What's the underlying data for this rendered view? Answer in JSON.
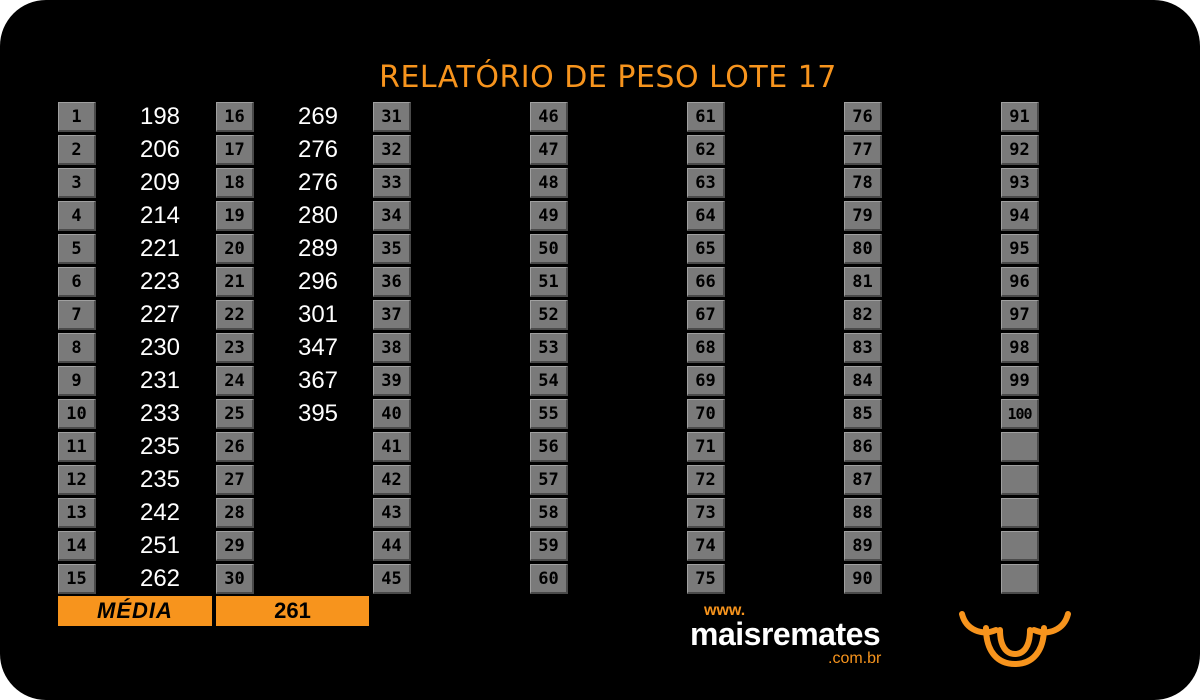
{
  "report": {
    "title": "RELATÓRIO DE PESO LOTE 17",
    "columns": [
      {
        "rows": [
          {
            "n": "1",
            "v": "198"
          },
          {
            "n": "2",
            "v": "206"
          },
          {
            "n": "3",
            "v": "209"
          },
          {
            "n": "4",
            "v": "214"
          },
          {
            "n": "5",
            "v": "221"
          },
          {
            "n": "6",
            "v": "223"
          },
          {
            "n": "7",
            "v": "227"
          },
          {
            "n": "8",
            "v": "230"
          },
          {
            "n": "9",
            "v": "231"
          },
          {
            "n": "10",
            "v": "233"
          },
          {
            "n": "11",
            "v": "235"
          },
          {
            "n": "12",
            "v": "235"
          },
          {
            "n": "13",
            "v": "242"
          },
          {
            "n": "14",
            "v": "251"
          },
          {
            "n": "15",
            "v": "262"
          }
        ]
      },
      {
        "rows": [
          {
            "n": "16",
            "v": "269"
          },
          {
            "n": "17",
            "v": "276"
          },
          {
            "n": "18",
            "v": "276"
          },
          {
            "n": "19",
            "v": "280"
          },
          {
            "n": "20",
            "v": "289"
          },
          {
            "n": "21",
            "v": "296"
          },
          {
            "n": "22",
            "v": "301"
          },
          {
            "n": "23",
            "v": "347"
          },
          {
            "n": "24",
            "v": "367"
          },
          {
            "n": "25",
            "v": "395"
          },
          {
            "n": "26",
            "v": ""
          },
          {
            "n": "27",
            "v": ""
          },
          {
            "n": "28",
            "v": ""
          },
          {
            "n": "29",
            "v": ""
          },
          {
            "n": "30",
            "v": ""
          }
        ]
      },
      {
        "rows": [
          {
            "n": "31",
            "v": ""
          },
          {
            "n": "32",
            "v": ""
          },
          {
            "n": "33",
            "v": ""
          },
          {
            "n": "34",
            "v": ""
          },
          {
            "n": "35",
            "v": ""
          },
          {
            "n": "36",
            "v": ""
          },
          {
            "n": "37",
            "v": ""
          },
          {
            "n": "38",
            "v": ""
          },
          {
            "n": "39",
            "v": ""
          },
          {
            "n": "40",
            "v": ""
          },
          {
            "n": "41",
            "v": ""
          },
          {
            "n": "42",
            "v": ""
          },
          {
            "n": "43",
            "v": ""
          },
          {
            "n": "44",
            "v": ""
          },
          {
            "n": "45",
            "v": ""
          }
        ]
      },
      {
        "rows": [
          {
            "n": "46",
            "v": ""
          },
          {
            "n": "47",
            "v": ""
          },
          {
            "n": "48",
            "v": ""
          },
          {
            "n": "49",
            "v": ""
          },
          {
            "n": "50",
            "v": ""
          },
          {
            "n": "51",
            "v": ""
          },
          {
            "n": "52",
            "v": ""
          },
          {
            "n": "53",
            "v": ""
          },
          {
            "n": "54",
            "v": ""
          },
          {
            "n": "55",
            "v": ""
          },
          {
            "n": "56",
            "v": ""
          },
          {
            "n": "57",
            "v": ""
          },
          {
            "n": "58",
            "v": ""
          },
          {
            "n": "59",
            "v": ""
          },
          {
            "n": "60",
            "v": ""
          }
        ]
      },
      {
        "rows": [
          {
            "n": "61",
            "v": ""
          },
          {
            "n": "62",
            "v": ""
          },
          {
            "n": "63",
            "v": ""
          },
          {
            "n": "64",
            "v": ""
          },
          {
            "n": "65",
            "v": ""
          },
          {
            "n": "66",
            "v": ""
          },
          {
            "n": "67",
            "v": ""
          },
          {
            "n": "68",
            "v": ""
          },
          {
            "n": "69",
            "v": ""
          },
          {
            "n": "70",
            "v": ""
          },
          {
            "n": "71",
            "v": ""
          },
          {
            "n": "72",
            "v": ""
          },
          {
            "n": "73",
            "v": ""
          },
          {
            "n": "74",
            "v": ""
          },
          {
            "n": "75",
            "v": ""
          }
        ]
      },
      {
        "rows": [
          {
            "n": "76",
            "v": ""
          },
          {
            "n": "77",
            "v": ""
          },
          {
            "n": "78",
            "v": ""
          },
          {
            "n": "79",
            "v": ""
          },
          {
            "n": "80",
            "v": ""
          },
          {
            "n": "81",
            "v": ""
          },
          {
            "n": "82",
            "v": ""
          },
          {
            "n": "83",
            "v": ""
          },
          {
            "n": "84",
            "v": ""
          },
          {
            "n": "85",
            "v": ""
          },
          {
            "n": "86",
            "v": ""
          },
          {
            "n": "87",
            "v": ""
          },
          {
            "n": "88",
            "v": ""
          },
          {
            "n": "89",
            "v": ""
          },
          {
            "n": "90",
            "v": ""
          }
        ]
      },
      {
        "rows": [
          {
            "n": "91",
            "v": ""
          },
          {
            "n": "92",
            "v": ""
          },
          {
            "n": "93",
            "v": ""
          },
          {
            "n": "94",
            "v": ""
          },
          {
            "n": "95",
            "v": ""
          },
          {
            "n": "96",
            "v": ""
          },
          {
            "n": "97",
            "v": ""
          },
          {
            "n": "98",
            "v": ""
          },
          {
            "n": "99",
            "v": ""
          },
          {
            "n": "100",
            "v": ""
          },
          {
            "n": "",
            "v": ""
          },
          {
            "n": "",
            "v": ""
          },
          {
            "n": "",
            "v": ""
          },
          {
            "n": "",
            "v": ""
          },
          {
            "n": "",
            "v": ""
          }
        ]
      }
    ],
    "average_label": "MÉDIA",
    "average_value": "261"
  },
  "brand": {
    "www": "www.",
    "name": "maisremates",
    "domain": ".com.br",
    "logo_icon": "bull-head-icon"
  },
  "colors": {
    "accent": "#f7941d",
    "background": "#000000",
    "cell": "#7a7a7a",
    "value_text": "#ffffff"
  }
}
